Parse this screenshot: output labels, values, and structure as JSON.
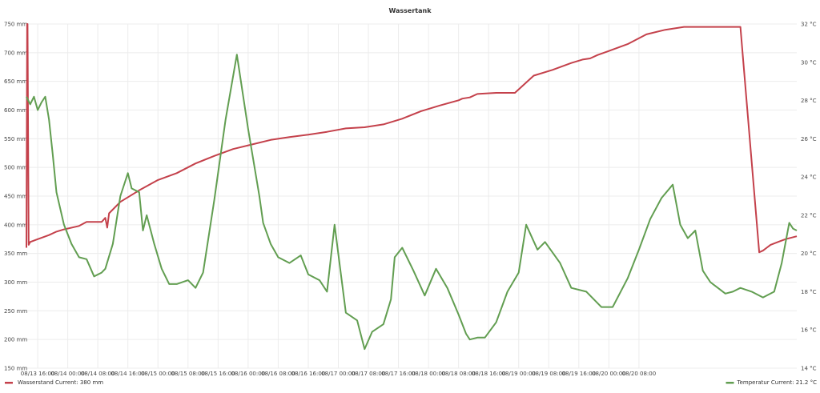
{
  "chart_data": {
    "type": "line",
    "title": "Wassertank",
    "grid": true,
    "legend_placement": "bottom",
    "x_tick_labels": [
      "08/13 16:00",
      "08/14 00:00",
      "08/14 08:00",
      "08/14 16:00",
      "08/15 00:00",
      "08/15 08:00",
      "08/15 16:00",
      "08/16 00:00",
      "08/16 08:00",
      "08/16 16:00",
      "08/17 00:00",
      "08/17 08:00",
      "08/17 16:00",
      "08/18 00:00",
      "08/18 08:00",
      "08/18 16:00",
      "08/19 00:00",
      "08/19 08:00",
      "08/19 16:00",
      "08/20 00:00",
      "08/20 08:00"
    ],
    "xlim_hours": [
      0,
      205
    ],
    "y_left": {
      "unit": "mm",
      "lim": [
        150,
        750
      ],
      "ticks": [
        150,
        200,
        250,
        300,
        350,
        400,
        450,
        500,
        550,
        600,
        650,
        700,
        750
      ]
    },
    "y_right": {
      "unit": "°C",
      "lim": [
        14,
        32
      ],
      "ticks": [
        14,
        16,
        18,
        20,
        22,
        24,
        26,
        28,
        30,
        32
      ]
    },
    "series": [
      {
        "name": "Wasserstand",
        "legend_label": "Wasserstand  Current: 380 mm",
        "color": "#c4414b",
        "axis": "left",
        "x_hours": [
          0,
          0.2,
          0.3,
          0.6,
          1,
          3,
          6,
          8,
          10,
          14,
          16,
          19,
          20,
          21,
          21.5,
          22,
          25,
          30,
          35,
          40,
          45,
          50,
          55,
          60,
          65,
          70,
          75,
          80,
          85,
          90,
          95,
          100,
          105,
          110,
          115,
          116,
          118,
          120,
          125,
          130,
          135,
          140,
          145,
          148,
          150,
          152,
          155,
          160,
          165,
          170,
          175,
          180,
          185,
          190,
          195,
          196,
          197,
          198,
          200,
          202,
          205
        ],
        "values": [
          360,
          750,
          750,
          365,
          370,
          375,
          382,
          388,
          392,
          398,
          405,
          405,
          405,
          412,
          395,
          420,
          440,
          460,
          478,
          490,
          507,
          520,
          532,
          540,
          548,
          553,
          557,
          562,
          568,
          570,
          575,
          585,
          598,
          608,
          617,
          620,
          622,
          628,
          630,
          630,
          660,
          670,
          682,
          688,
          690,
          696,
          703,
          715,
          732,
          740,
          745,
          745,
          745,
          745,
          352,
          355,
          360,
          365,
          370,
          375,
          380
        ]
      },
      {
        "name": "Temperatur",
        "legend_label": "Temperatur  Current: 21.2 °C",
        "color": "#629e51",
        "axis": "right",
        "x_hours": [
          0,
          1,
          2,
          3,
          4,
          5,
          6,
          7,
          8,
          10,
          12,
          14,
          16,
          18,
          20,
          21,
          23,
          25,
          27,
          28,
          30,
          31,
          32,
          34,
          36,
          38,
          40,
          43,
          45,
          47,
          50,
          53,
          56,
          59,
          62,
          63,
          65,
          67,
          70,
          73,
          75,
          78,
          80,
          82,
          85,
          88,
          90,
          92,
          95,
          97,
          98,
          100,
          103,
          106,
          109,
          112,
          115,
          117,
          118,
          120,
          122,
          125,
          128,
          131,
          133,
          136,
          138,
          142,
          145,
          149,
          153,
          156,
          160,
          163,
          166,
          169,
          172,
          174,
          176,
          178,
          180,
          182,
          184,
          186,
          188,
          190,
          193,
          196,
          199,
          201,
          203,
          204,
          205
        ],
        "values": [
          28.2,
          27.8,
          28.2,
          27.5,
          27.9,
          28.2,
          27.0,
          25.2,
          23.2,
          21.5,
          20.5,
          19.8,
          19.7,
          18.8,
          19.0,
          19.2,
          20.5,
          23.0,
          24.2,
          23.4,
          23.2,
          21.2,
          22.0,
          20.5,
          19.2,
          18.4,
          18.4,
          18.6,
          18.2,
          19.0,
          22.8,
          27.0,
          30.4,
          26.5,
          23.0,
          21.6,
          20.5,
          19.8,
          19.5,
          19.9,
          18.9,
          18.6,
          18.0,
          21.5,
          16.9,
          16.5,
          15.0,
          15.9,
          16.3,
          17.6,
          19.8,
          20.3,
          19.1,
          17.8,
          19.2,
          18.2,
          16.8,
          15.8,
          15.5,
          15.6,
          15.6,
          16.4,
          18.0,
          19.0,
          21.5,
          20.2,
          20.6,
          19.5,
          18.2,
          18.0,
          17.2,
          17.2,
          18.7,
          20.2,
          21.8,
          22.9,
          23.6,
          21.5,
          20.8,
          21.2,
          19.1,
          18.5,
          18.2,
          17.9,
          18.0,
          18.2,
          18.0,
          17.7,
          18.0,
          19.5,
          21.6,
          21.3,
          21.2
        ]
      }
    ]
  }
}
